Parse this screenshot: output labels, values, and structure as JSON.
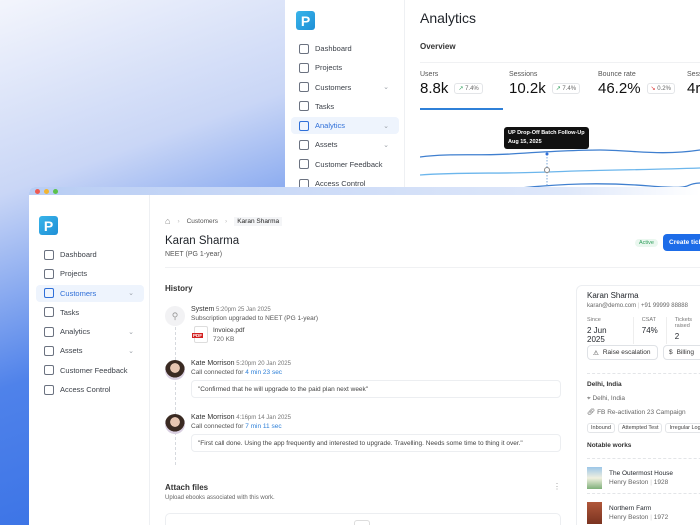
{
  "back_window": {
    "nav": [
      {
        "label": "Dashboard",
        "icon": "dashboard-icon"
      },
      {
        "label": "Projects",
        "icon": "layers-icon"
      },
      {
        "label": "Customers",
        "icon": "users-icon",
        "chevron": true
      },
      {
        "label": "Tasks",
        "icon": "tasks-icon"
      },
      {
        "label": "Analytics",
        "icon": "analytics-icon",
        "chevron": true,
        "active": true
      },
      {
        "label": "Assets",
        "icon": "folder-icon",
        "chevron": true
      },
      {
        "label": "Customer Feedback",
        "icon": "pie-icon"
      },
      {
        "label": "Access Control",
        "icon": "users-icon"
      }
    ],
    "title": "Analytics",
    "section": "Overview",
    "metrics": [
      {
        "label": "Users",
        "value": "8.8k",
        "change": "7.4%",
        "trend": "up"
      },
      {
        "label": "Sessions",
        "value": "10.2k",
        "change": "7.4%",
        "trend": "up"
      },
      {
        "label": "Bounce rate",
        "value": "46.2%",
        "change": "0.2%",
        "trend": "down"
      },
      {
        "label": "Sess",
        "value": "4r"
      }
    ],
    "tooltip": {
      "title": "UP Drop-Off Batch Follow-Up",
      "date": "Aug 15, 2025"
    }
  },
  "front_window": {
    "nav": [
      {
        "label": "Dashboard"
      },
      {
        "label": "Projects"
      },
      {
        "label": "Customers",
        "chevron": true,
        "active": true
      },
      {
        "label": "Tasks"
      },
      {
        "label": "Analytics",
        "chevron": true
      },
      {
        "label": "Assets",
        "chevron": true
      },
      {
        "label": "Customer Feedback"
      },
      {
        "label": "Access Control"
      }
    ],
    "breadcrumb": [
      "Customers",
      "Karan Sharma"
    ],
    "title": "Karan Sharma",
    "subtitle": "NEET (PG 1-year)",
    "status": "Active",
    "create_button": "Create tick",
    "history_title": "History",
    "history": [
      {
        "author": "System",
        "time": "5:20pm 25 Jan 2025",
        "text": "Subscription upgraded to NEET (PG 1-year)",
        "file": {
          "name": "Invoice.pdf",
          "size": "720 KB",
          "badge": "PDF"
        }
      },
      {
        "author": "Kate Morrison",
        "time": "5:20pm 20 Jan 2025",
        "text": "Call connected for ",
        "duration": "4 min 23 sec",
        "quote": "\"Confirmed that he will upgrade to the paid plan next week\""
      },
      {
        "author": "Kate Morrison",
        "time": "4:16pm 14 Jan 2025",
        "text": "Call connected for ",
        "duration": "7 min 11 sec",
        "quote": "\"First call done. Using the app frequently and interested to upgrade. Travelling. Needs some time to thing it over.\""
      }
    ],
    "attach": {
      "title": "Attach files",
      "subtitle": "Upload ebooks associated with this work."
    },
    "profile": {
      "name": "Karan Sharma",
      "email": "karan@demo.com",
      "phone": "+91 99999 88888",
      "stats": [
        {
          "label": "Since",
          "value": "2 Jun 2025"
        },
        {
          "label": "CSAT",
          "value": "74%"
        },
        {
          "label": "Tickets raised",
          "value": "2"
        }
      ],
      "buttons": [
        "Raise escalation",
        "Billing"
      ],
      "location_title": "Delhi, India",
      "location": "Delhi, India",
      "campaign": "FB Re-activation 23 Campaign",
      "tags": [
        "Inbound",
        "Attempted Test",
        "Irregular Logins"
      ],
      "works_title": "Notable works",
      "works": [
        {
          "title": "The Outermost House",
          "author": "Henry Beston",
          "year": "1928"
        },
        {
          "title": "Northern Farm",
          "author": "Henry Beston",
          "year": "1972"
        }
      ]
    }
  },
  "colors": {
    "accent": "#1d6ce8",
    "active_badge": "#2e9e5b"
  }
}
